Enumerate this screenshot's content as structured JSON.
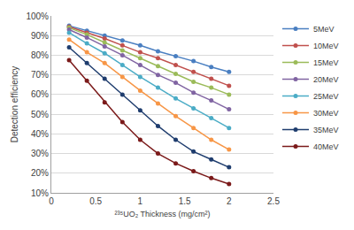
{
  "chart_data": {
    "type": "line",
    "x_label": "²³⁵UO₂ Thickness (mg/cm²)",
    "y_label": "Detection efficiency",
    "x": [
      0.2,
      0.4,
      0.6,
      0.8,
      1.0,
      1.2,
      1.4,
      1.6,
      1.8,
      2.0
    ],
    "series": [
      {
        "name": "5MeV",
        "color": "#4a7fc1",
        "values": [
          95,
          92.5,
          90,
          87.5,
          85,
          82,
          79.5,
          77,
          74,
          71.5
        ]
      },
      {
        "name": "10MeV",
        "color": "#c0504d",
        "values": [
          94.5,
          91.5,
          88.5,
          85,
          81.5,
          78.5,
          75,
          71.5,
          68,
          64.5
        ]
      },
      {
        "name": "15MeV",
        "color": "#9bbb59",
        "values": [
          94,
          90.5,
          86.5,
          82.5,
          78.5,
          74.5,
          70.5,
          66.5,
          63.5,
          60
        ]
      },
      {
        "name": "20MeV",
        "color": "#8064a2",
        "values": [
          93,
          89,
          84.5,
          80,
          75,
          70,
          66,
          61,
          57,
          52.5
        ]
      },
      {
        "name": "25MeV",
        "color": "#4bacc6",
        "values": [
          91.5,
          86,
          81,
          75,
          69,
          63.5,
          58,
          53,
          48,
          43
        ]
      },
      {
        "name": "30MeV",
        "color": "#f79646",
        "values": [
          88,
          81.5,
          76,
          69,
          62,
          55.5,
          49,
          43,
          37,
          32
        ]
      },
      {
        "name": "35MeV",
        "color": "#1f3d6e",
        "values": [
          84,
          76,
          68,
          60,
          52,
          44,
          37,
          31,
          27,
          23
        ]
      },
      {
        "name": "40MeV",
        "color": "#7b1a1a",
        "values": [
          77.5,
          67,
          56,
          46,
          37,
          30,
          25,
          21,
          17.5,
          14.5
        ]
      }
    ],
    "xlim": [
      0,
      2.5
    ],
    "xticks": [
      0,
      0.5,
      1,
      1.5,
      2,
      2.5
    ],
    "ylim": [
      10,
      100
    ],
    "yticks": [
      {
        "value": 10,
        "label": "10%"
      },
      {
        "value": 20,
        "label": "20%"
      },
      {
        "value": 30,
        "label": "30%"
      },
      {
        "value": 40,
        "label": "40%"
      },
      {
        "value": 50,
        "label": "50%"
      },
      {
        "value": 60,
        "label": "60%"
      },
      {
        "value": 70,
        "label": "70%"
      },
      {
        "value": 80,
        "label": "80%"
      },
      {
        "value": 90,
        "label": "90%"
      },
      {
        "value": 100,
        "label": "100%"
      }
    ],
    "grid": true,
    "legend": "right",
    "marker": "circle",
    "line_style": "solid"
  }
}
